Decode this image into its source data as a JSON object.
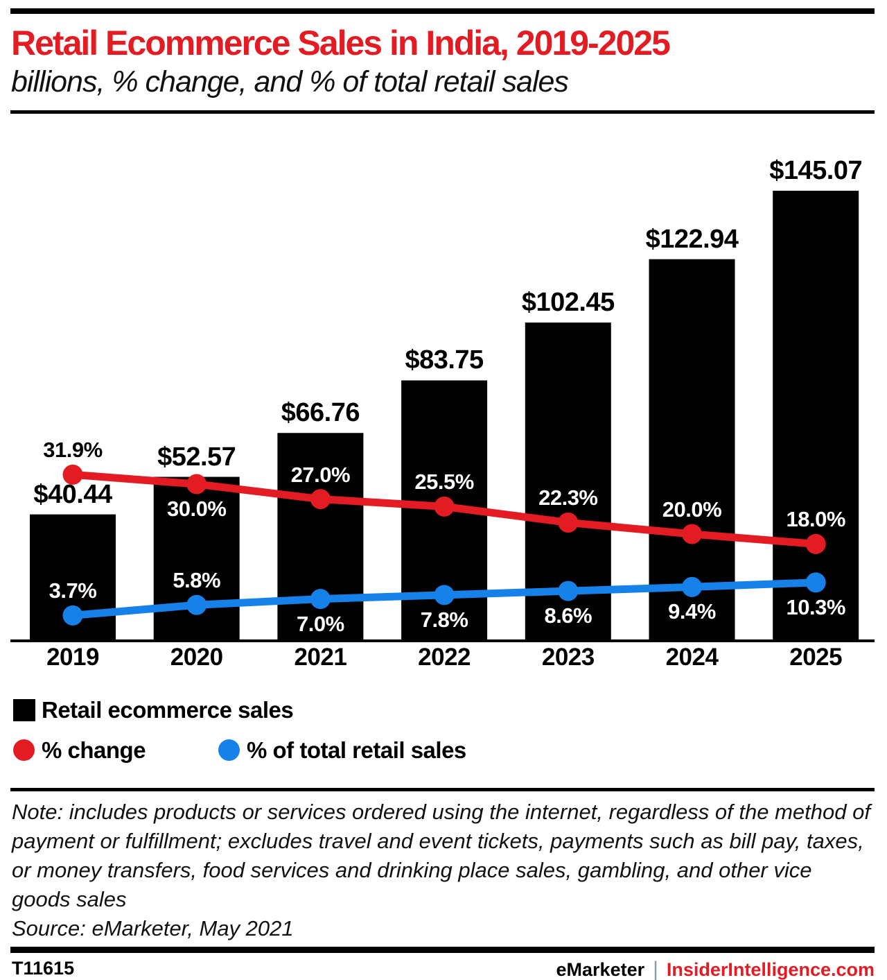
{
  "header": {
    "title": "Retail Ecommerce Sales in India, 2019-2025",
    "subtitle": "billions, % change, and % of total retail sales"
  },
  "chart_data": {
    "type": "bar",
    "title": "Retail Ecommerce Sales in India, 2019-2025",
    "subtitle": "billions, % change, and % of total retail sales",
    "categories": [
      "2019",
      "2020",
      "2021",
      "2022",
      "2023",
      "2024",
      "2025"
    ],
    "series": [
      {
        "name": "Retail ecommerce sales",
        "type": "bar",
        "unit": "billions of $",
        "color": "#000000",
        "values": [
          40.44,
          52.57,
          66.76,
          83.75,
          102.45,
          122.94,
          145.07
        ],
        "labels": [
          "$40.44",
          "$52.57",
          "$66.76",
          "$83.75",
          "$102.45",
          "$122.94",
          "$145.07"
        ]
      },
      {
        "name": "% change",
        "type": "line",
        "unit": "%",
        "color": "#e31b23",
        "values": [
          31.9,
          30.0,
          27.0,
          25.5,
          22.3,
          20.0,
          18.0
        ],
        "labels": [
          "31.9%",
          "30.0%",
          "27.0%",
          "25.5%",
          "22.3%",
          "20.0%",
          "18.0%"
        ],
        "label_positions": [
          "above",
          "below",
          "above",
          "above",
          "above",
          "above",
          "above"
        ],
        "label_colors": [
          "#000000",
          "#ffffff",
          "#ffffff",
          "#ffffff",
          "#ffffff",
          "#ffffff",
          "#ffffff"
        ]
      },
      {
        "name": "% of total retail sales",
        "type": "line",
        "unit": "%",
        "color": "#1581e9",
        "values": [
          3.7,
          5.8,
          7.0,
          7.8,
          8.6,
          9.4,
          10.3
        ],
        "labels": [
          "3.7%",
          "5.8%",
          "7.0%",
          "7.8%",
          "8.6%",
          "9.4%",
          "10.3%"
        ],
        "label_positions": [
          "above",
          "above",
          "below",
          "below",
          "below",
          "below",
          "below"
        ],
        "label_colors": [
          "#ffffff",
          "#ffffff",
          "#ffffff",
          "#ffffff",
          "#ffffff",
          "#ffffff",
          "#ffffff"
        ]
      }
    ],
    "xlabel": "",
    "ylabel": "",
    "ylim_bar": [
      0,
      160
    ],
    "ylim_pct": [
      0,
      35
    ],
    "grid": false,
    "y_axis_shown": false,
    "legend_position": "bottom-left"
  },
  "note": {
    "text": "Note: includes products or services ordered using the internet, regardless of the method of payment or fulfillment; excludes travel and event tickets, payments such as bill pay, taxes, or money transfers, food services and drinking place sales, gambling, and other vice goods sales",
    "source": "Source: eMarketer, May 2021"
  },
  "footer": {
    "id": "T11615",
    "brand": "eMarketer",
    "separator": "|",
    "site": "InsiderIntelligence.com"
  },
  "colors": {
    "accent_red": "#e31b23",
    "line_blue": "#1581e9",
    "bar_black": "#000000",
    "separator_gray": "#8d99a5",
    "background": "#ffffff"
  }
}
